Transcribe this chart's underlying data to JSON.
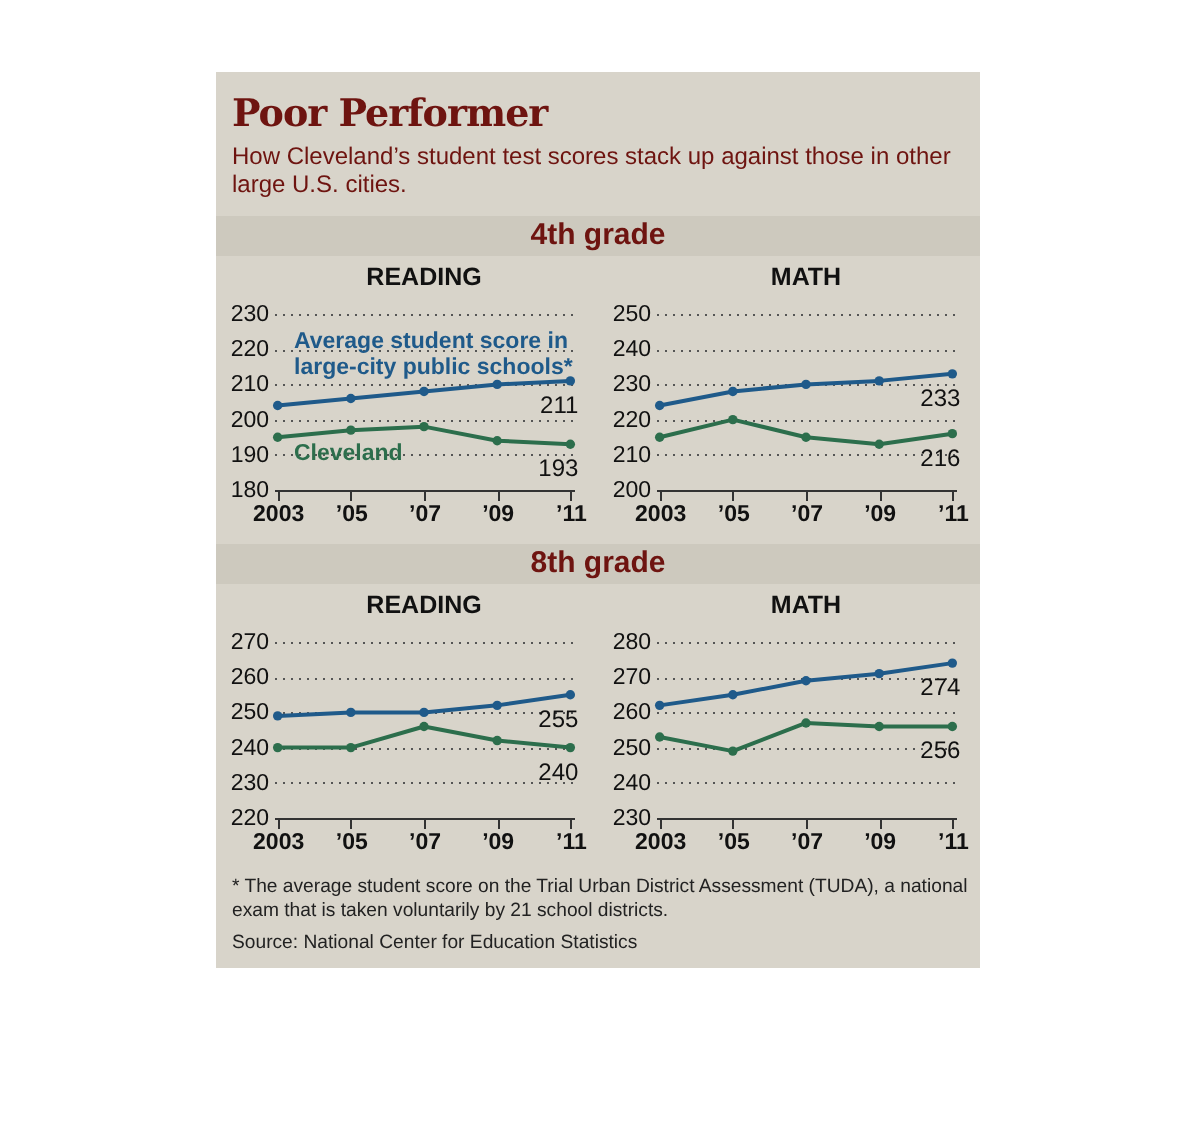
{
  "chart_data": [
    {
      "type": "other",
      "title": "Poor Performer",
      "subtitle": "How Cleveland’s student test scores stack up against those in other large U.S. cities."
    },
    {
      "type": "line",
      "title": "READING",
      "annotations": [
        "4th grade"
      ],
      "categories": [
        "2003",
        "’05",
        "’07",
        "’09",
        "’11"
      ],
      "ylim": [
        180,
        230
      ],
      "yticks": [
        180,
        190,
        200,
        210,
        220,
        230
      ],
      "grid": "y",
      "marker": "circle",
      "series": [
        {
          "name": "Average student score in large-city public schools*",
          "color": "#1f5a8a",
          "values": [
            204,
            206,
            208,
            210,
            211
          ],
          "value_labels": [
            null,
            null,
            null,
            null,
            "211"
          ]
        },
        {
          "name": "Cleveland",
          "color": "#2c6e4c",
          "values": [
            195,
            197,
            198,
            194,
            193
          ],
          "value_labels": [
            null,
            null,
            null,
            null,
            "193"
          ]
        }
      ]
    },
    {
      "type": "line",
      "title": "MATH",
      "categories": [
        "2003",
        "’05",
        "’07",
        "’09",
        "’11"
      ],
      "ylim": [
        200,
        250
      ],
      "yticks": [
        200,
        210,
        220,
        230,
        240,
        250
      ],
      "grid": "y",
      "marker": "circle",
      "series": [
        {
          "color": "#1f5a8a",
          "values": [
            224,
            228,
            230,
            231,
            233
          ],
          "value_labels": [
            null,
            null,
            null,
            null,
            "233"
          ]
        },
        {
          "color": "#2c6e4c",
          "values": [
            215,
            220,
            215,
            213,
            216
          ],
          "value_labels": [
            null,
            null,
            null,
            null,
            "216"
          ]
        }
      ]
    },
    {
      "type": "line",
      "title": "READING",
      "annotations": [
        "8th grade"
      ],
      "categories": [
        "2003",
        "’05",
        "’07",
        "’09",
        "’11"
      ],
      "ylim": [
        220,
        270
      ],
      "yticks": [
        220,
        230,
        240,
        250,
        260,
        270
      ],
      "grid": "y",
      "marker": "circle",
      "series": [
        {
          "color": "#1f5a8a",
          "values": [
            249,
            250,
            250,
            252,
            255
          ],
          "value_labels": [
            null,
            null,
            null,
            null,
            "255"
          ]
        },
        {
          "color": "#2c6e4c",
          "values": [
            240,
            240,
            246,
            242,
            240
          ],
          "value_labels": [
            null,
            null,
            null,
            null,
            "240"
          ]
        }
      ]
    },
    {
      "type": "line",
      "title": "MATH",
      "annotations": [
        "* The average student score on the Trial Urban District Assessment (TUDA), a national exam that is taken voluntarily by 21 school districts.",
        "Source: National Center for Education Statistics"
      ],
      "categories": [
        "2003",
        "’05",
        "’07",
        "’09",
        "’11"
      ],
      "ylim": [
        230,
        280
      ],
      "yticks": [
        230,
        240,
        250,
        260,
        270,
        280
      ],
      "grid": "y",
      "marker": "circle",
      "series": [
        {
          "color": "#1f5a8a",
          "values": [
            262,
            265,
            269,
            271,
            274
          ],
          "value_labels": [
            null,
            null,
            null,
            null,
            "274"
          ]
        },
        {
          "color": "#2c6e4c",
          "values": [
            253,
            249,
            257,
            256,
            256
          ],
          "value_labels": [
            null,
            null,
            null,
            null,
            "256"
          ]
        }
      ]
    }
  ]
}
